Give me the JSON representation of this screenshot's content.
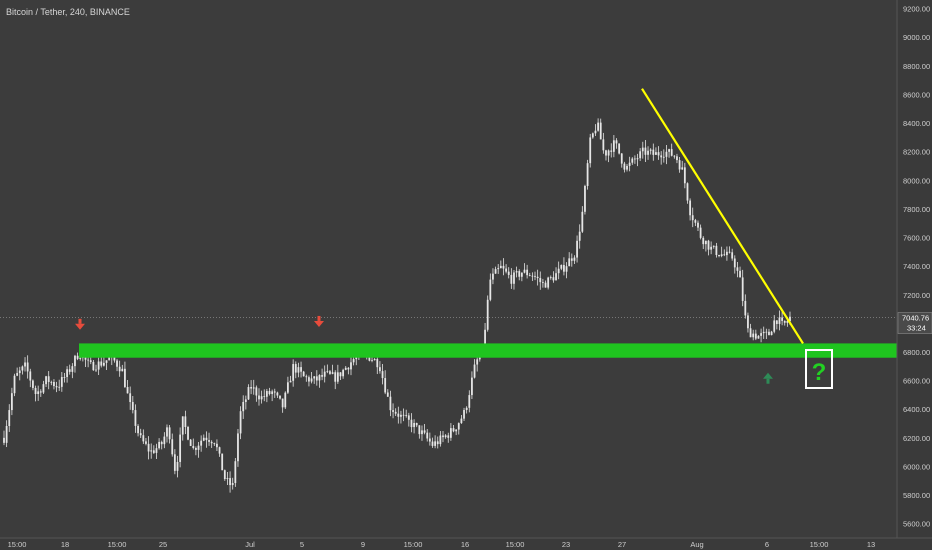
{
  "symbol": {
    "title": "Bitcoin / Tether, 240, BINANCE"
  },
  "price_label": {
    "value": "7040.76",
    "countdown": "33:24"
  },
  "annotation": {
    "question_mark": "?"
  },
  "colors": {
    "background": "#3c3c3c",
    "candles": "#e6e6e6",
    "support_zone": "#1fc41f",
    "trendline": "#ffff00",
    "arrow_down": "#e74c3c",
    "arrow_up": "#2e8b57",
    "price_line": "#9a9a9a",
    "axis_text": "#cfcfcf",
    "question_box_border": "#ffffff",
    "question_mark": "#22d122"
  },
  "chart_data": {
    "type": "candlestick",
    "x_axis": {
      "tick_labels": [
        "15:00",
        "18",
        "15:00",
        "25",
        "Jul",
        "5",
        "9",
        "15:00",
        "16",
        "15:00",
        "23",
        "27",
        "Aug",
        "6",
        "15:00",
        "13"
      ]
    },
    "y_axis": {
      "range": [
        5500,
        9260
      ],
      "tick_labels": [
        "9200.00",
        "9000.00",
        "8800.00",
        "8600.00",
        "8400.00",
        "8200.00",
        "8000.00",
        "7800.00",
        "7600.00",
        "7400.00",
        "7200.00",
        "7000.00",
        "6800.00",
        "6600.00",
        "6400.00",
        "6200.00",
        "6000.00",
        "5800.00",
        "5600.00"
      ],
      "tick_values": [
        9200,
        9000,
        8800,
        8600,
        8400,
        8200,
        8000,
        7800,
        7600,
        7400,
        7200,
        7000,
        6800,
        6600,
        6400,
        6200,
        6000,
        5800,
        5600
      ]
    },
    "last_price": 7040.76,
    "support_zone": {
      "low": 6760,
      "high": 6860
    },
    "trendline": {
      "start": {
        "x": "Jul 27 (approx.)",
        "y": 8640
      },
      "end": {
        "x": "Aug 8 (approx.)",
        "y": 6860
      }
    },
    "markers": [
      {
        "type": "arrow-down",
        "x": "Jun 18 (approx.)",
        "price": 6990
      },
      {
        "type": "arrow-down",
        "x": "Jul 6 (approx.)",
        "price": 7010
      },
      {
        "type": "arrow-up",
        "x": "Aug 6 (approx.)",
        "price": 6620
      }
    ],
    "price_path": [
      [
        0,
        6200
      ],
      [
        1.5,
        6620
      ],
      [
        3,
        6700
      ],
      [
        4.5,
        6500
      ],
      [
        6,
        6610
      ],
      [
        7.5,
        6560
      ],
      [
        9,
        6660
      ],
      [
        10.5,
        6800
      ],
      [
        12,
        6700
      ],
      [
        13.5,
        6720
      ],
      [
        15,
        6760
      ],
      [
        16.5,
        6680
      ],
      [
        17.5,
        6450
      ],
      [
        19,
        6200
      ],
      [
        20.5,
        6100
      ],
      [
        22,
        6150
      ],
      [
        23,
        6280
      ],
      [
        24,
        5960
      ],
      [
        25,
        6320
      ],
      [
        26.5,
        6120
      ],
      [
        28,
        6210
      ],
      [
        29.5,
        6180
      ],
      [
        31,
        5900
      ],
      [
        32,
        5860
      ],
      [
        33,
        6360
      ],
      [
        34.5,
        6560
      ],
      [
        36,
        6480
      ],
      [
        37.5,
        6520
      ],
      [
        39,
        6420
      ],
      [
        40.5,
        6700
      ],
      [
        42,
        6620
      ],
      [
        43.5,
        6600
      ],
      [
        45,
        6640
      ],
      [
        46.5,
        6620
      ],
      [
        48,
        6700
      ],
      [
        49.5,
        6780
      ],
      [
        51,
        6770
      ],
      [
        52.5,
        6720
      ],
      [
        54,
        6420
      ],
      [
        55.5,
        6350
      ],
      [
        57,
        6300
      ],
      [
        58.5,
        6230
      ],
      [
        60,
        6150
      ],
      [
        61.5,
        6200
      ],
      [
        63,
        6260
      ],
      [
        64.5,
        6380
      ],
      [
        66,
        6720
      ],
      [
        67,
        6810
      ],
      [
        68,
        7300
      ],
      [
        69.5,
        7390
      ],
      [
        71,
        7310
      ],
      [
        72.5,
        7360
      ],
      [
        74,
        7340
      ],
      [
        75.5,
        7270
      ],
      [
        77,
        7330
      ],
      [
        78.5,
        7400
      ],
      [
        80,
        7500
      ],
      [
        81,
        7790
      ],
      [
        82,
        8260
      ],
      [
        83,
        8400
      ],
      [
        84,
        8180
      ],
      [
        85.5,
        8260
      ],
      [
        87,
        8080
      ],
      [
        88,
        8130
      ],
      [
        89.5,
        8200
      ],
      [
        91,
        8180
      ],
      [
        92.5,
        8200
      ],
      [
        94,
        8170
      ],
      [
        95,
        8060
      ],
      [
        96,
        7790
      ],
      [
        97.5,
        7610
      ],
      [
        99,
        7520
      ],
      [
        100.5,
        7480
      ],
      [
        102,
        7460
      ],
      [
        103,
        7300
      ],
      [
        104,
        6950
      ],
      [
        105.5,
        6910
      ],
      [
        107,
        6920
      ],
      [
        108,
        7040
      ],
      [
        109,
        6980
      ],
      [
        110,
        7040
      ]
    ]
  }
}
